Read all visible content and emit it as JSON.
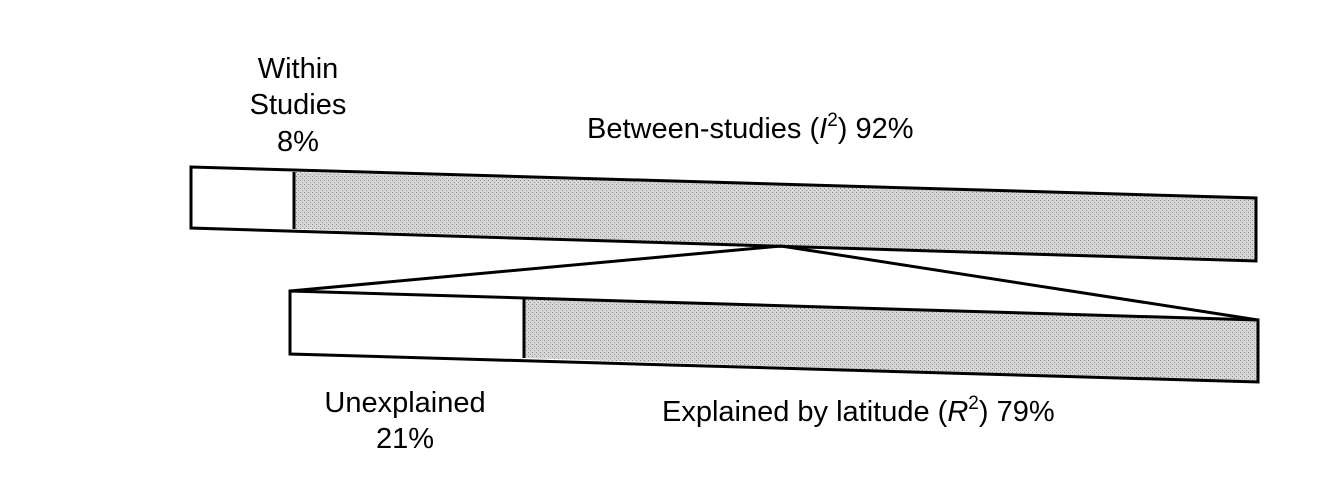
{
  "colors": {
    "shaded": "#d6d6d6",
    "outline": "#000000",
    "blank": "#ffffff"
  },
  "top_bar": {
    "within": {
      "line1": "Within",
      "line2": "Studies",
      "percent": "8%",
      "value": 8
    },
    "between": {
      "prefix": "Between-studies (",
      "symbol": "I",
      "superscript": "2",
      "suffix": ") 92%",
      "value": 92
    }
  },
  "bottom_bar": {
    "unexplained": {
      "line1": "Unexplained",
      "percent": "21%",
      "value": 21
    },
    "explained": {
      "prefix": "Explained by latitude (",
      "symbol": "R",
      "superscript": "2",
      "suffix": ") 79%",
      "value": 79
    }
  }
}
